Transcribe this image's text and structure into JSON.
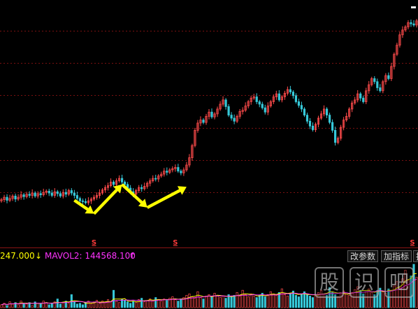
{
  "volume_bar": {
    "vol_text": "247.000",
    "vol_arrow": "↓",
    "mavol_text": "MAVOL2: 144568.100",
    "mavol_arrow": "↑"
  },
  "buttons": {
    "params_label": "改参数",
    "add_indicator_label": "加指标",
    "third_label": "抗"
  },
  "signal_label": "S",
  "watermark": [
    "股",
    "识",
    "吧"
  ],
  "colors": {
    "background": "#000000",
    "up_candle": "#ff4b4b",
    "down_candle": "#36c8d8",
    "grid": "#7a1010",
    "arrow": "#ffff00",
    "vol_text": "#ffff00",
    "mavol_text": "#ff33ff"
  },
  "chart_data": {
    "type": "candlestick",
    "x": [
      "1",
      "2",
      "3",
      "4",
      "5",
      "6",
      "7",
      "8",
      "9",
      "10",
      "11",
      "12",
      "13",
      "14",
      "15",
      "16",
      "17",
      "18",
      "19",
      "20",
      "21",
      "22",
      "23",
      "24",
      "25",
      "26",
      "27",
      "28",
      "29",
      "30",
      "31",
      "32",
      "33",
      "34",
      "35",
      "36",
      "37",
      "38",
      "39",
      "40",
      "41",
      "42",
      "43",
      "44",
      "45",
      "46",
      "47",
      "48",
      "49",
      "50",
      "51",
      "52",
      "53",
      "54",
      "55",
      "56",
      "57",
      "58",
      "59",
      "60",
      "61",
      "62",
      "63",
      "64",
      "65",
      "66",
      "67",
      "68",
      "69",
      "70",
      "71",
      "72",
      "73",
      "74",
      "75",
      "76",
      "77",
      "78",
      "79",
      "80",
      "81",
      "82",
      "83",
      "84",
      "85",
      "86",
      "87",
      "88",
      "89",
      "90",
      "91",
      "92",
      "93",
      "94",
      "95",
      "96",
      "97",
      "98",
      "99",
      "100",
      "101",
      "102",
      "103",
      "104",
      "105",
      "106",
      "107",
      "108",
      "109",
      "110",
      "111",
      "112",
      "113",
      "114",
      "115",
      "116",
      "117",
      "118",
      "119",
      "120",
      "121",
      "122",
      "123",
      "124",
      "125",
      "126",
      "127",
      "128",
      "129",
      "130",
      "131",
      "132",
      "133",
      "134",
      "135",
      "136",
      "137",
      "138",
      "139",
      "140",
      "141",
      "142",
      "143",
      "144",
      "145",
      "146",
      "147",
      "148",
      "149"
    ],
    "close": [
      11,
      15,
      10,
      13,
      17,
      12,
      15,
      19,
      16,
      20,
      18,
      22,
      17,
      21,
      19,
      23,
      25,
      22,
      18,
      24,
      21,
      17,
      23,
      20,
      26,
      22,
      18,
      13,
      9,
      8,
      6,
      9,
      12,
      15,
      18,
      22,
      27,
      31,
      34,
      40,
      36,
      42,
      46,
      40,
      36,
      30,
      24,
      20,
      26,
      31,
      29,
      33,
      38,
      42,
      46,
      45,
      50,
      53,
      58,
      56,
      60,
      62,
      64,
      58,
      55,
      60,
      68,
      80,
      100,
      125,
      137,
      142,
      138,
      148,
      155,
      147,
      152,
      160,
      168,
      175,
      164,
      150,
      145,
      140,
      148,
      156,
      158,
      165,
      172,
      178,
      180,
      172,
      168,
      162,
      155,
      165,
      172,
      180,
      185,
      175,
      180,
      186,
      192,
      188,
      182,
      172,
      166,
      160,
      150,
      140,
      132,
      126,
      135,
      145,
      152,
      160,
      150,
      138,
      125,
      105,
      112,
      130,
      142,
      148,
      160,
      170,
      175,
      185,
      178,
      172,
      190,
      200,
      210,
      205,
      195,
      190,
      205,
      215,
      210,
      230,
      250,
      265,
      282,
      290,
      295,
      302,
      300,
      298,
      305
    ],
    "volume": [
      4,
      6,
      3,
      8,
      5,
      7,
      4,
      9,
      6,
      5,
      7,
      3,
      8,
      6,
      5,
      9,
      7,
      4,
      6,
      8,
      12,
      5,
      7,
      9,
      6,
      18,
      8,
      5,
      6,
      4,
      7,
      9,
      5,
      8,
      10,
      6,
      9,
      7,
      11,
      8,
      24,
      9,
      7,
      12,
      10,
      8,
      6,
      9,
      7,
      11,
      13,
      8,
      10,
      12,
      9,
      14,
      11,
      9,
      12,
      10,
      13,
      15,
      11,
      9,
      12,
      14,
      17,
      19,
      15,
      13,
      22,
      14,
      12,
      16,
      18,
      15,
      20,
      17,
      14,
      16,
      13,
      18,
      15,
      17,
      21,
      16,
      24,
      18,
      15,
      19,
      16,
      14,
      17,
      20,
      15,
      18,
      22,
      19,
      17,
      21,
      26,
      18,
      16,
      20,
      23,
      17,
      15,
      19,
      22,
      18,
      16,
      14,
      18,
      21,
      24,
      19,
      17,
      28,
      22,
      18,
      15,
      20,
      23,
      19,
      17,
      21,
      25,
      29,
      24,
      19,
      22,
      26,
      21,
      18,
      24,
      27,
      22,
      20,
      26,
      24,
      30,
      36,
      28,
      40,
      52,
      38,
      44,
      60,
      42
    ],
    "ylim": [
      -40,
      330
    ],
    "series": [
      {
        "name": "MAVOL1",
        "color": "#ffff00"
      },
      {
        "name": "MAVOL2",
        "color": "#ff33ff"
      }
    ],
    "grid": true
  },
  "signals": [
    33,
    62,
    148
  ],
  "arrows": [
    {
      "from": [
        26,
        10
      ],
      "to": [
        33,
        -12
      ]
    },
    {
      "from": [
        33,
        -12
      ],
      "to": [
        43,
        36
      ]
    },
    {
      "from": [
        43,
        36
      ],
      "to": [
        52,
        -2
      ]
    },
    {
      "from": [
        52,
        -2
      ],
      "to": [
        66,
        32
      ]
    }
  ]
}
